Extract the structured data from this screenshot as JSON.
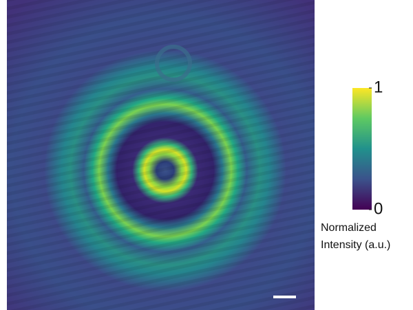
{
  "chart_data": {
    "type": "heatmap",
    "colormap": "viridis",
    "clim": [
      0,
      1
    ],
    "cticks": [
      0,
      1
    ],
    "colorbar_label": [
      "Normalized",
      "Intensity (a.u.)"
    ]
  }
}
